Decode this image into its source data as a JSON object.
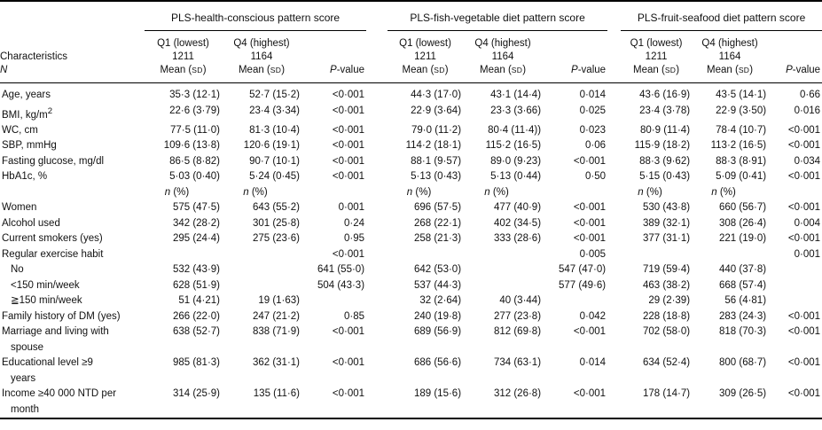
{
  "table": {
    "left_header": {
      "line1": "Characteristics",
      "line2": "N"
    },
    "groups": [
      {
        "title": "PLS-health-conscious pattern score"
      },
      {
        "title": "PLS-fish-vegetable diet pattern score"
      },
      {
        "title": "PLS-fruit-seafood diet pattern score"
      }
    ],
    "subheader": {
      "q1_label": "Q1 (lowest)",
      "q1_n": "1211",
      "q4_label": "Q4 (highest)",
      "q4_n": "1164",
      "mean_prefix": "Mean (",
      "sd": "SD",
      "mean_suffix": ")",
      "p_italic": "P",
      "p_rest": "-value"
    },
    "n_header": {
      "italic": "n",
      "rest": " (%)"
    },
    "rows": [
      {
        "label": "Age, years",
        "cells": [
          "35·3 (12·1)",
          "52·7 (15·2)",
          "<0·001",
          "44·3 (17·0)",
          "43·1 (14·4)",
          "0·014",
          "43·6 (16·9)",
          "43·5 (14·1)",
          "0·66"
        ]
      },
      {
        "label": "BMI, kg/m",
        "sup": "2",
        "cells": [
          "22·6 (3·79)",
          "23·4 (3·34)",
          "<0·001",
          "22·9 (3·64)",
          "23·3 (3·66)",
          "0·025",
          "23·4 (3·78)",
          "22·9 (3·50)",
          "0·016"
        ]
      },
      {
        "label": "WC, cm",
        "cells": [
          "77·5 (11·0)",
          "81·3 (10·4)",
          "<0·001",
          "79·0 (11·2)",
          "80·4 (11·4))",
          "0·023",
          "80·9 (11·4)",
          "78·4 (10·7)",
          "<0·001"
        ]
      },
      {
        "label": "SBP, mmHg",
        "cells": [
          "109·6 (13·8)",
          "120·6 (19·1)",
          "<0·001",
          "114·2 (18·1)",
          "115·2 (16·5)",
          "0·06",
          "115·9 (18·2)",
          "113·2 (16·5)",
          "<0·001"
        ]
      },
      {
        "label": "Fasting glucose, mg/dl",
        "cells": [
          "86·5 (8·82)",
          "90·7 (10·1)",
          "<0·001",
          "88·1 (9·57)",
          "89·0 (9·23)",
          "<0·001",
          "88·3 (9·62)",
          "88·3 (8·91)",
          "0·034"
        ]
      },
      {
        "label": "HbA1c, %",
        "cells": [
          "5·03 (0·40)",
          "5·24 (0·45)",
          "<0·001",
          "5·13 (0·43)",
          "5·13 (0·44)",
          "0·50",
          "5·15 (0·43)",
          "5·09 (0·41)",
          "<0·001"
        ]
      },
      {
        "label": "",
        "type": "subheader",
        "cells": [
          "n (%)",
          "n (%)",
          "",
          "n (%)",
          "n (%)",
          "",
          "n (%)",
          "n (%)",
          ""
        ]
      },
      {
        "label": "Women",
        "cells": [
          "575 (47·5)",
          "643 (55·2)",
          "0·001",
          "696 (57·5)",
          "477 (40·9)",
          "<0·001",
          "530 (43·8)",
          "660 (56·7)",
          "<0·001"
        ]
      },
      {
        "label": "Alcohol used",
        "cells": [
          "342 (28·2)",
          "301 (25·8)",
          "0·24",
          "268 (22·1)",
          "402 (34·5)",
          "<0·001",
          "389 (32·1)",
          "308 (26·4)",
          "0·004"
        ]
      },
      {
        "label": "Current smokers (yes)",
        "cells": [
          "295 (24·4)",
          "275 (23·6)",
          "0·95",
          "258 (21·3)",
          "333 (28·6)",
          "<0·001",
          "377 (31·1)",
          "221 (19·0)",
          "<0·001"
        ]
      },
      {
        "label": "Regular exercise habit",
        "cells": [
          "",
          "",
          "<0·001",
          "",
          "",
          "0·005",
          "",
          "",
          "0·001"
        ]
      },
      {
        "label": "No",
        "indent": true,
        "cells": [
          "532 (43·9)",
          "",
          "641 (55·0)",
          "642 (53·0)",
          "",
          "547 (47·0)",
          "719 (59·4)",
          "440 (37·8)",
          ""
        ]
      },
      {
        "label": "<150 min/week",
        "indent": true,
        "cells": [
          "628 (51·9)",
          "",
          "504 (43·3)",
          "537 (44·3)",
          "",
          "577 (49·6)",
          "463 (38·2)",
          "668 (57·4)",
          ""
        ]
      },
      {
        "label": "≧150 min/week",
        "indent": true,
        "cells": [
          "51 (4·21)",
          "19 (1·63)",
          "",
          "32 (2·64)",
          "40 (3·44)",
          "",
          "29 (2·39)",
          "56 (4·81)",
          ""
        ]
      },
      {
        "label": "Family history of DM (yes)",
        "cells": [
          "266 (22·0)",
          "247 (21·2)",
          "0·85",
          "240 (19·8)",
          "277 (23·8)",
          "0·042",
          "228 (18·8)",
          "283 (24·3)",
          "<0·001"
        ]
      },
      {
        "label": "Marriage and living with",
        "label2": "spouse",
        "cells": [
          "638 (52·7)",
          "838 (71·9)",
          "<0·001",
          "689 (56·9)",
          "812 (69·8)",
          "<0·001",
          "702 (58·0)",
          "818 (70·3)",
          "<0·001"
        ]
      },
      {
        "label": "Educational level ≥9",
        "label2": "years",
        "cells": [
          "985 (81·3)",
          "362 (31·1)",
          "<0·001",
          "686 (56·6)",
          "734 (63·1)",
          "0·014",
          "634 (52·4)",
          "800 (68·7)",
          "<0·001"
        ]
      },
      {
        "label": "Income ≥40 000 NTD per",
        "label2": "month",
        "cells": [
          "314 (25·9)",
          "135 (11·6)",
          "<0·001",
          "189 (15·6)",
          "312 (26·8)",
          "<0·001",
          "178 (14·7)",
          "309 (26·5)",
          "<0·001"
        ]
      }
    ]
  }
}
